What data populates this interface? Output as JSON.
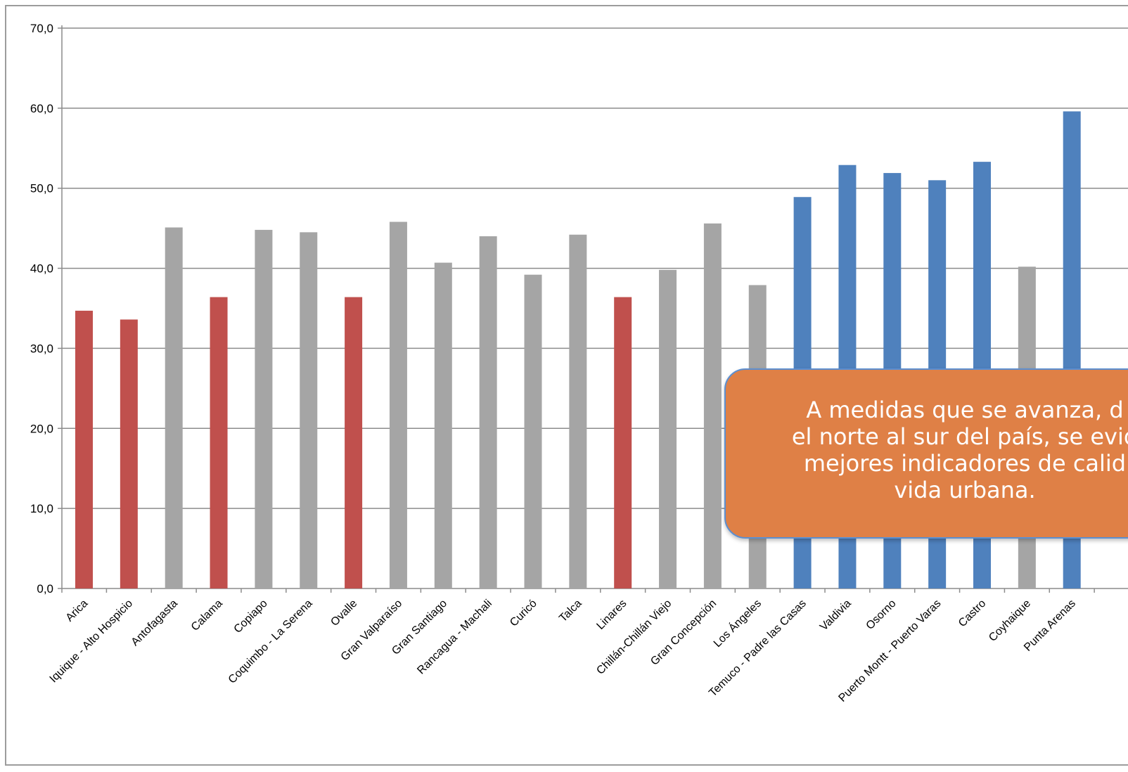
{
  "chart_data": {
    "type": "bar",
    "title": "",
    "xlabel": "",
    "ylabel": "",
    "ylim": [
      0,
      70
    ],
    "yticks": [
      "0,0",
      "10,0",
      "20,0",
      "30,0",
      "40,0",
      "50,0",
      "60,0",
      "70,0"
    ],
    "grid": "horizontal",
    "categories": [
      "Arica",
      "Iquique - Alto Hospicio",
      "Antofagasta",
      "Calama",
      "Copiapo",
      "Coquimbo - La Serena",
      "Ovalle",
      "Gran Valparaíso",
      "Gran Santiago",
      "Rancagua - Machali",
      "Curicó",
      "Talca",
      "Linares",
      "Chillán-Chillán Viejo",
      "Gran Concepción",
      "Los Ángeles",
      "Temuco - Padre las Casas",
      "Valdivia",
      "Osorno",
      "Puerto Montt - Puerto Varas",
      "Castro",
      "Coyhaique",
      "Punta Arenas"
    ],
    "values": [
      34.7,
      33.6,
      45.1,
      36.4,
      44.8,
      44.5,
      36.4,
      45.8,
      40.7,
      44.0,
      39.2,
      44.2,
      36.4,
      39.8,
      45.6,
      37.9,
      48.9,
      52.9,
      51.9,
      51.0,
      53.3,
      40.2,
      59.6
    ],
    "bar_colors": [
      "#c0504d",
      "#c0504d",
      "#a5a5a5",
      "#c0504d",
      "#a5a5a5",
      "#a5a5a5",
      "#c0504d",
      "#a5a5a5",
      "#a5a5a5",
      "#a5a5a5",
      "#a5a5a5",
      "#a5a5a5",
      "#c0504d",
      "#a5a5a5",
      "#a5a5a5",
      "#a5a5a5",
      "#4f81bd",
      "#4f81bd",
      "#4f81bd",
      "#4f81bd",
      "#4f81bd",
      "#a5a5a5",
      "#4f81bd"
    ],
    "colors": {
      "red": "#c0504d",
      "gray": "#a5a5a5",
      "blue": "#4f81bd",
      "grid": "#8c8c8c",
      "axis": "#8c8c8c"
    }
  },
  "annotation": {
    "text": "A medidas que se avanza, d\nel norte al sur del país, se evid\nmejores  indicadores de calid\nvida urbana.",
    "fill": "#df8046",
    "border": "#5b8fd1",
    "text_color": "#ffffff"
  }
}
